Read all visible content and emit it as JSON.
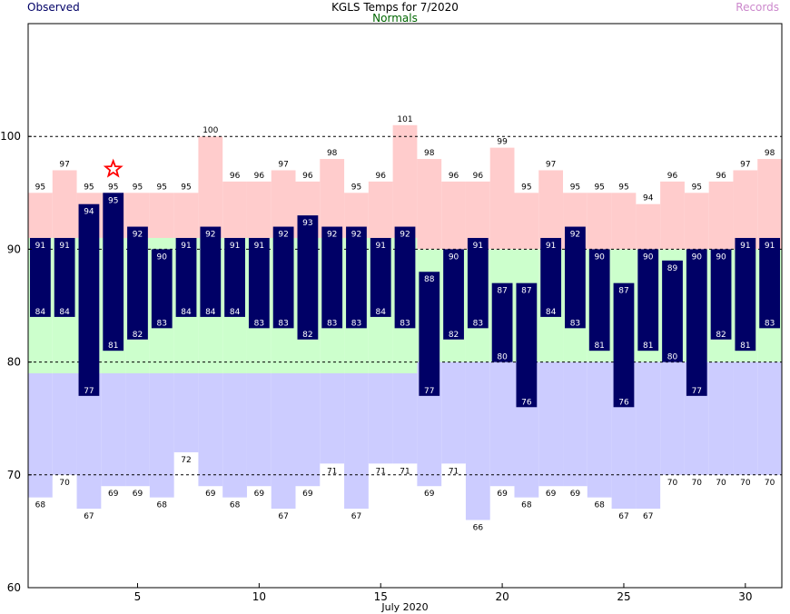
{
  "header": {
    "observed_label": "Observed",
    "title": "KGLS Temps for 7/2020",
    "normals_label": "Normals",
    "records_label": "Records"
  },
  "colors": {
    "observed": "#000066",
    "observed_text": "#ffffff",
    "normals_label": "#006600",
    "records_label": "#cc88cc",
    "record_high_band": "#ffcccc",
    "normal_band": "#ccffcc",
    "record_low_band": "#ccccff",
    "title": "#000000",
    "grid": "#000000",
    "star": "#ff0000"
  },
  "chart_data": {
    "type": "bar",
    "title": "KGLS Temps for 7/2020",
    "xlabel": "July 2020",
    "ylabel": "",
    "ylim": [
      60,
      110
    ],
    "xlim": [
      0.5,
      31.5
    ],
    "yticks": [
      60,
      70,
      80,
      90,
      100
    ],
    "xticks": [
      5,
      10,
      15,
      20,
      25,
      30
    ],
    "grid": "dashed horizontal at 70, 80, 90, 100",
    "legend": "top-left: Observed, top-center: Normals, top-right: Records",
    "days": [
      1,
      2,
      3,
      4,
      5,
      6,
      7,
      8,
      9,
      10,
      11,
      12,
      13,
      14,
      15,
      16,
      17,
      18,
      19,
      20,
      21,
      22,
      23,
      24,
      25,
      26,
      27,
      28,
      29,
      30,
      31
    ],
    "series": [
      {
        "name": "Observed",
        "type": "floating-bar",
        "high": [
          91,
          91,
          94,
          95,
          92,
          90,
          91,
          92,
          91,
          91,
          92,
          93,
          92,
          92,
          91,
          92,
          88,
          90,
          91,
          87,
          87,
          91,
          92,
          90,
          87,
          90,
          89,
          90,
          90,
          91,
          91
        ],
        "low": [
          84,
          84,
          77,
          81,
          82,
          83,
          84,
          84,
          84,
          83,
          83,
          82,
          83,
          83,
          84,
          83,
          77,
          82,
          83,
          80,
          76,
          84,
          83,
          81,
          76,
          81,
          80,
          77,
          82,
          81,
          83
        ]
      },
      {
        "name": "Normals",
        "type": "band",
        "high": [
          91,
          91,
          91,
          91,
          91,
          91,
          91,
          91,
          91,
          91,
          91,
          91,
          91,
          91,
          91,
          91,
          90,
          90,
          90,
          90,
          90,
          90,
          90,
          90,
          90,
          90,
          90,
          90,
          90,
          90,
          90
        ],
        "low": [
          79,
          79,
          79,
          79,
          79,
          79,
          79,
          79,
          79,
          79,
          79,
          79,
          79,
          79,
          79,
          79,
          80,
          80,
          80,
          80,
          80,
          80,
          80,
          80,
          80,
          80,
          80,
          80,
          80,
          80,
          80
        ]
      },
      {
        "name": "Records",
        "type": "band",
        "high": [
          95,
          97,
          95,
          95,
          95,
          95,
          95,
          100,
          96,
          96,
          97,
          96,
          98,
          95,
          96,
          101,
          98,
          96,
          96,
          99,
          95,
          97,
          95,
          95,
          95,
          94,
          96,
          95,
          96,
          97,
          98
        ],
        "low": [
          68,
          70,
          67,
          69,
          69,
          68,
          72,
          69,
          68,
          69,
          67,
          69,
          71,
          67,
          71,
          71,
          69,
          71,
          66,
          69,
          68,
          69,
          69,
          68,
          67,
          67,
          70,
          70,
          70,
          70,
          70
        ]
      }
    ],
    "annotations": [
      {
        "type": "star",
        "day": 4,
        "value": 97.1
      }
    ]
  }
}
